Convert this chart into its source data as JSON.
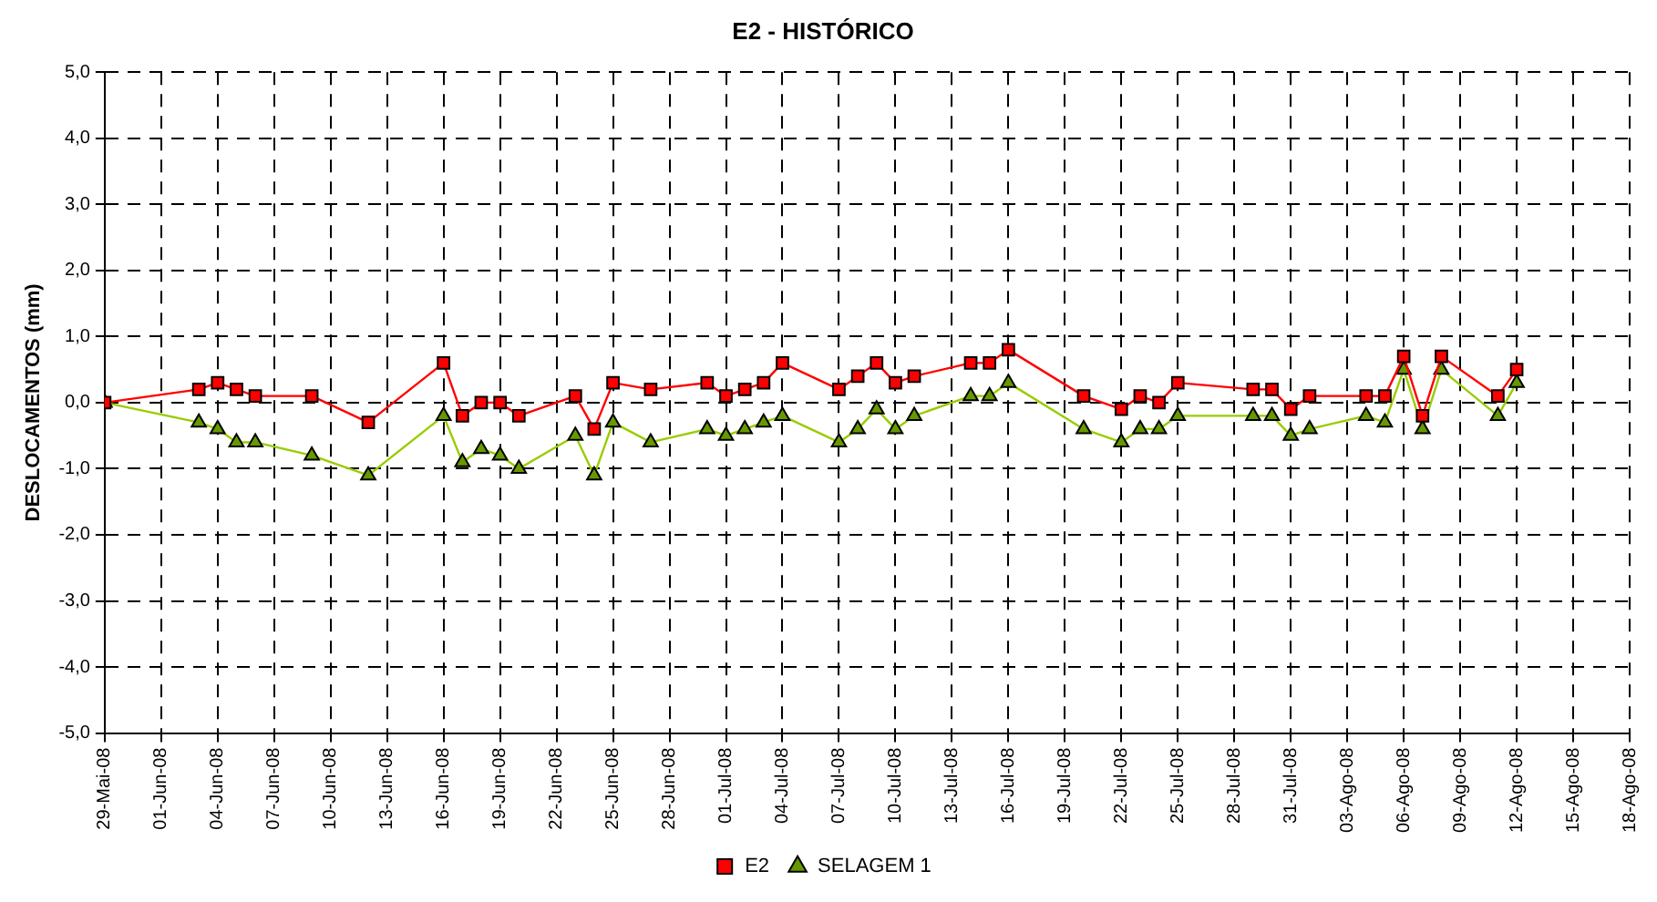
{
  "chart_data": {
    "type": "line",
    "title": "E2 - HISTÓRICO",
    "ylabel": "DESLOCAMENTOS (mm)",
    "x": [
      "--05-29",
      "--06-03",
      "--06-04",
      "--06-05",
      "--06-06",
      "--06-09",
      "--06-12",
      "--06-16",
      "--06-17",
      "--06-18",
      "--06-19",
      "--06-20",
      "--06-23",
      "--06-24",
      "--06-25",
      "--06-27",
      "--06-30",
      "--07-01",
      "--07-02",
      "--07-03",
      "--07-04",
      "--07-07",
      "--07-08",
      "--07-09",
      "--07-10",
      "--07-11",
      "--07-14",
      "--07-15",
      "--07-16",
      "--07-20",
      "--07-22",
      "--07-23",
      "--07-24",
      "--07-25",
      "--07-29",
      "--07-30",
      "--07-31",
      "--08-01",
      "--08-04",
      "--08-05",
      "--08-06",
      "--08-07",
      "--08-08",
      "--08-11",
      "--08-12"
    ],
    "series": [
      {
        "name": "E2",
        "color": "#ff0000",
        "marker": "square",
        "values": [
          0.0,
          0.2,
          0.3,
          0.2,
          0.1,
          0.1,
          -0.3,
          0.6,
          -0.2,
          0.0,
          0.0,
          -0.2,
          0.1,
          -0.4,
          0.3,
          0.2,
          0.3,
          0.1,
          0.2,
          0.3,
          0.6,
          0.2,
          0.4,
          0.6,
          0.3,
          0.4,
          0.6,
          0.6,
          0.8,
          0.1,
          -0.1,
          0.1,
          0.0,
          0.3,
          0.2,
          0.2,
          -0.1,
          0.1,
          0.1,
          0.1,
          0.7,
          -0.2,
          0.7,
          0.1,
          0.5
        ]
      },
      {
        "name": "SELAGEM 1",
        "color": "#99cc00",
        "marker": "triangle",
        "values": [
          0.0,
          -0.3,
          -0.4,
          -0.6,
          -0.6,
          -0.8,
          -1.1,
          -0.2,
          -0.9,
          -0.7,
          -0.8,
          -1.0,
          -0.5,
          -1.1,
          -0.3,
          -0.6,
          -0.4,
          -0.5,
          -0.4,
          -0.3,
          -0.2,
          -0.6,
          -0.4,
          -0.1,
          -0.4,
          -0.2,
          0.1,
          0.1,
          0.3,
          -0.4,
          -0.6,
          -0.4,
          -0.4,
          -0.2,
          -0.2,
          -0.2,
          -0.5,
          -0.4,
          -0.2,
          -0.3,
          0.5,
          -0.4,
          0.5,
          -0.2,
          0.3
        ]
      }
    ],
    "xlim": [
      "--05-29",
      "--08-18"
    ],
    "xticks": [
      {
        "value": "--05-29",
        "label": "29-Mai-08"
      },
      {
        "value": "--06-01",
        "label": "01-Jun-08"
      },
      {
        "value": "--06-04",
        "label": "04-Jun-08"
      },
      {
        "value": "--06-07",
        "label": "07-Jun-08"
      },
      {
        "value": "--06-10",
        "label": "10-Jun-08"
      },
      {
        "value": "--06-13",
        "label": "13-Jun-08"
      },
      {
        "value": "--06-16",
        "label": "16-Jun-08"
      },
      {
        "value": "--06-19",
        "label": "19-Jun-08"
      },
      {
        "value": "--06-22",
        "label": "22-Jun-08"
      },
      {
        "value": "--06-25",
        "label": "25-Jun-08"
      },
      {
        "value": "--06-28",
        "label": "28-Jun-08"
      },
      {
        "value": "--07-01",
        "label": "01-Jul-08"
      },
      {
        "value": "--07-04",
        "label": "04-Jul-08"
      },
      {
        "value": "--07-07",
        "label": "07-Jul-08"
      },
      {
        "value": "--07-10",
        "label": "10-Jul-08"
      },
      {
        "value": "--07-13",
        "label": "13-Jul-08"
      },
      {
        "value": "--07-16",
        "label": "16-Jul-08"
      },
      {
        "value": "--07-19",
        "label": "19-Jul-08"
      },
      {
        "value": "--07-22",
        "label": "22-Jul-08"
      },
      {
        "value": "--07-25",
        "label": "25-Jul-08"
      },
      {
        "value": "--07-28",
        "label": "28-Jul-08"
      },
      {
        "value": "--07-31",
        "label": "31-Jul-08"
      },
      {
        "value": "--08-03",
        "label": "03-Ago-08"
      },
      {
        "value": "--08-06",
        "label": "06-Ago-08"
      },
      {
        "value": "--08-09",
        "label": "09-Ago-08"
      },
      {
        "value": "--08-12",
        "label": "12-Ago-08"
      },
      {
        "value": "--08-15",
        "label": "15-Ago-08"
      },
      {
        "value": "--08-18",
        "label": "18-Ago-08"
      }
    ],
    "ylim": [
      -5,
      5
    ],
    "yticks": [
      {
        "value": -5,
        "label": "-5,0"
      },
      {
        "value": -4,
        "label": "-4,0"
      },
      {
        "value": -3,
        "label": "-3,0"
      },
      {
        "value": -2,
        "label": "-2,0"
      },
      {
        "value": -1,
        "label": "-1,0"
      },
      {
        "value": 0,
        "label": "0,0"
      },
      {
        "value": 1,
        "label": "1,0"
      },
      {
        "value": 2,
        "label": "2,0"
      },
      {
        "value": 3,
        "label": "3,0"
      },
      {
        "value": 4,
        "label": "4,0"
      },
      {
        "value": 5,
        "label": "5,0"
      }
    ],
    "grid": true,
    "line_style": "solid",
    "legend": "bottom"
  }
}
